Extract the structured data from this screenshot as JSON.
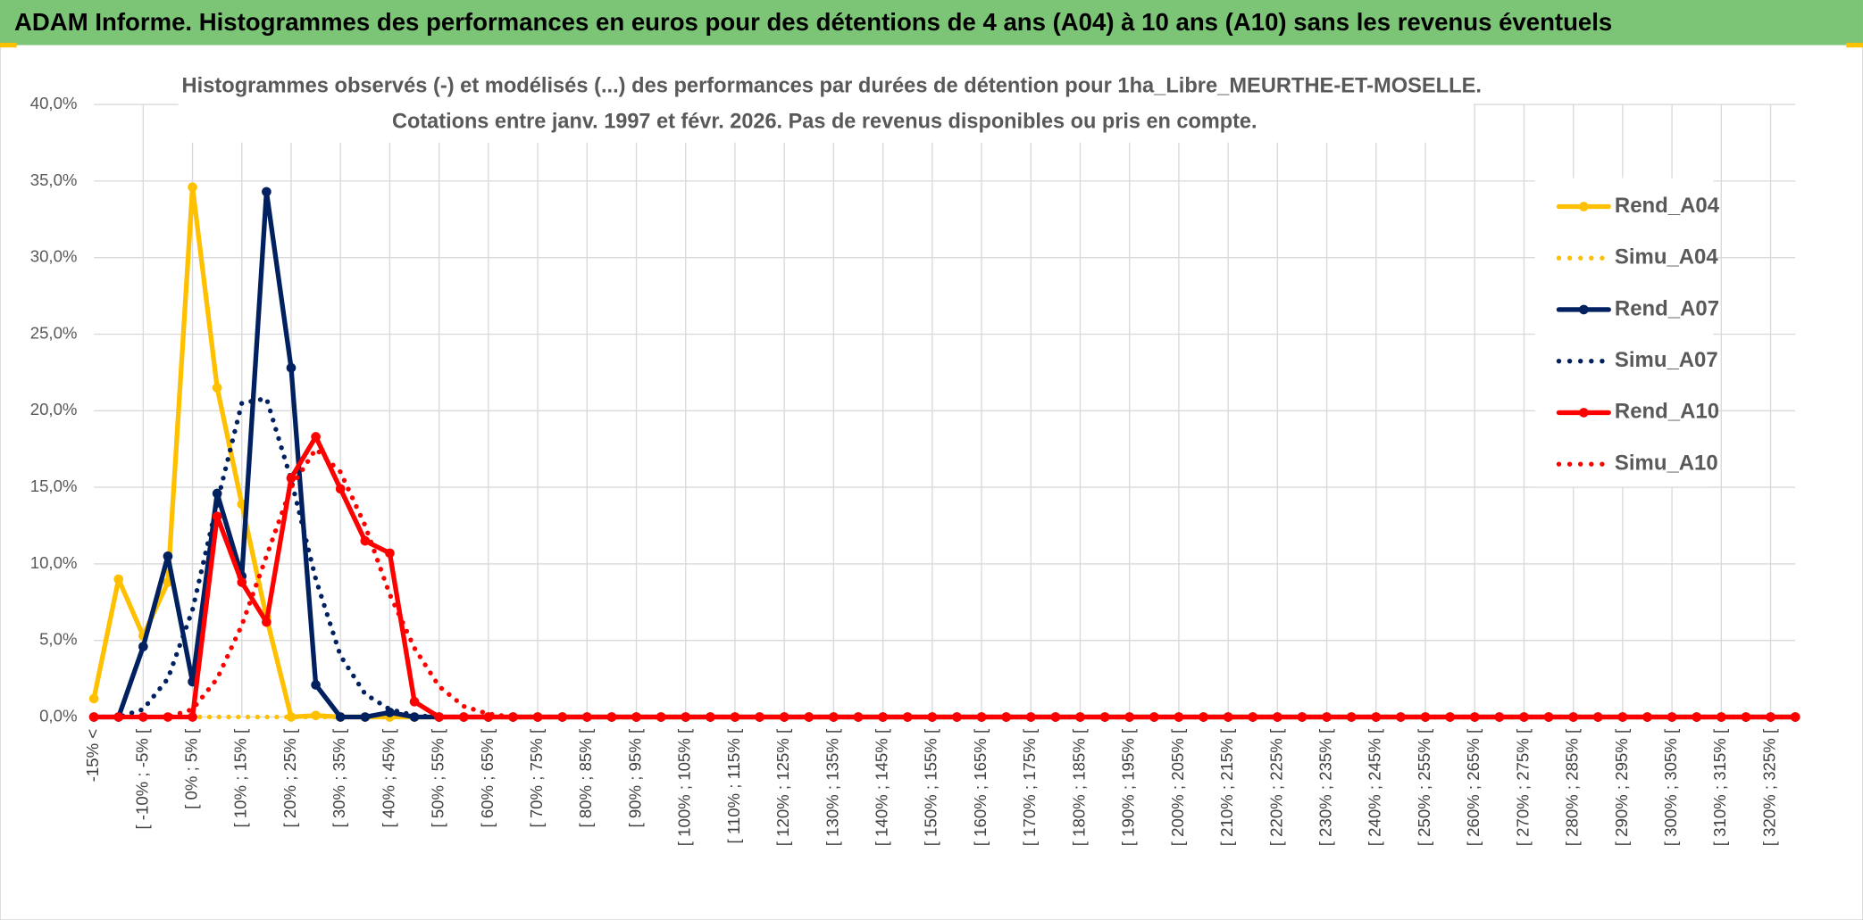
{
  "chart_data": {
    "type": "line",
    "header": "ADAM Informe. Histogrammes des performances en euros pour des détentions de 4 ans (A04) à 10 ans (A10) sans les revenus éventuels",
    "title": "Histogrammes observés (-) et modélisés (...) des performances par durées de détention pour 1ha_Libre_MEURTHE-ET-MOSELLE.",
    "subtitle": "Cotations entre janv. 1997 et févr. 2026. Pas de revenus disponibles ou pris en compte.",
    "categories": [
      "-15% <",
      null,
      "[ -10% ; -5% [",
      null,
      "[ 0% ; 5% [",
      null,
      "[ 10% ; 15% [",
      null,
      "[ 20% ; 25% [",
      null,
      "[ 30% ; 35% [",
      null,
      "[ 40% ; 45% [",
      null,
      "[ 50% ; 55% [",
      null,
      "[ 60% ; 65% [",
      null,
      "[ 70% ; 75% [",
      null,
      "[ 80% ; 85% [",
      null,
      "[ 90% ; 95% [",
      null,
      "[ 100% ; 105% [",
      null,
      "[ 110% ; 115% [",
      null,
      "[ 120% ; 125% [",
      null,
      "[ 130% ; 135% [",
      null,
      "[ 140% ; 145% [",
      null,
      "[ 150% ; 155% [",
      null,
      "[ 160% ; 165% [",
      null,
      "[ 170% ; 175% [",
      null,
      "[ 180% ; 185% [",
      null,
      "[ 190% ; 195% [",
      null,
      "[ 200% ; 205% [",
      null,
      "[ 210% ; 215% [",
      null,
      "[ 220% ; 225% [",
      null,
      "[ 230% ; 235% [",
      null,
      "[ 240% ; 245% [",
      null,
      "[ 250% ; 255% [",
      null,
      "[ 260% ; 265% [",
      null,
      "[ 270% ; 275% [",
      null,
      "[ 280% ; 285% [",
      null,
      "[ 290% ; 295% [",
      null,
      "[ 300% ; 305% [",
      null,
      "[ 310% ; 315% [",
      null,
      "[ 320% ; 325% [",
      null
    ],
    "series": [
      {
        "name": "Rend_A04",
        "color": "#ffc000",
        "line_style": "solid",
        "values": [
          1.2,
          9.0,
          5.3,
          8.8,
          34.6,
          21.5,
          13.9,
          6.5,
          0,
          0.1,
          0,
          0,
          0,
          0,
          0,
          0,
          0,
          0,
          0,
          0,
          0,
          0,
          0,
          0,
          0,
          0,
          0,
          0,
          0,
          0,
          0,
          0,
          0,
          0,
          0,
          0,
          0,
          0,
          0,
          0,
          0,
          0,
          0,
          0,
          0,
          0,
          0,
          0,
          0,
          0,
          0,
          0,
          0,
          0,
          0,
          0,
          0,
          0,
          0,
          0,
          0,
          0,
          0,
          0,
          0,
          0,
          0,
          0,
          0,
          0
        ]
      },
      {
        "name": "Simu_A04",
        "color": "#ffc000",
        "line_style": "dotted",
        "values": [
          0,
          0,
          0,
          0,
          0,
          0,
          0,
          0,
          0,
          0,
          0,
          0,
          0,
          0,
          0,
          0,
          0,
          0,
          0,
          0,
          0,
          0,
          0,
          0,
          0,
          0,
          0,
          0,
          0,
          0,
          0,
          0,
          0,
          0,
          0,
          0,
          0,
          0,
          0,
          0,
          0,
          0,
          0,
          0,
          0,
          0,
          0,
          0,
          0,
          0,
          0,
          0,
          0,
          0,
          0,
          0,
          0,
          0,
          0,
          0,
          0,
          0,
          0,
          0,
          0,
          0,
          0,
          0,
          0,
          0
        ]
      },
      {
        "name": "Rend_A07",
        "color": "#002060",
        "line_style": "solid",
        "values": [
          0,
          0,
          4.6,
          10.5,
          2.3,
          14.6,
          9.2,
          34.3,
          22.8,
          2.1,
          0,
          0,
          0.3,
          0,
          0,
          0,
          0,
          0,
          0,
          0,
          0,
          0,
          0,
          0,
          0,
          0,
          0,
          0,
          0,
          0,
          0,
          0,
          0,
          0,
          0,
          0,
          0,
          0,
          0,
          0,
          0,
          0,
          0,
          0,
          0,
          0,
          0,
          0,
          0,
          0,
          0,
          0,
          0,
          0,
          0,
          0,
          0,
          0,
          0,
          0,
          0,
          0,
          0,
          0,
          0,
          0,
          0,
          0,
          0,
          0
        ]
      },
      {
        "name": "Simu_A07",
        "color": "#002060",
        "line_style": "dotted",
        "values": [
          0,
          0,
          0.5,
          2.5,
          7,
          14,
          20.5,
          20.8,
          15.5,
          9,
          4,
          1.5,
          0.5,
          0.1,
          0,
          0,
          0,
          0,
          0,
          0,
          0,
          0,
          0,
          0,
          0,
          0,
          0,
          0,
          0,
          0,
          0,
          0,
          0,
          0,
          0,
          0,
          0,
          0,
          0,
          0,
          0,
          0,
          0,
          0,
          0,
          0,
          0,
          0,
          0,
          0,
          0,
          0,
          0,
          0,
          0,
          0,
          0,
          0,
          0,
          0,
          0,
          0,
          0,
          0,
          0,
          0,
          0,
          0,
          0,
          0
        ]
      },
      {
        "name": "Rend_A10",
        "color": "#ff0000",
        "line_style": "solid",
        "values": [
          0,
          0,
          0,
          0,
          0,
          13.1,
          8.8,
          6.2,
          15.6,
          18.3,
          14.9,
          11.5,
          10.7,
          1.0,
          0,
          0,
          0,
          0,
          0,
          0,
          0,
          0,
          0,
          0,
          0,
          0,
          0,
          0,
          0,
          0,
          0,
          0,
          0,
          0,
          0,
          0,
          0,
          0,
          0,
          0,
          0,
          0,
          0,
          0,
          0,
          0,
          0,
          0,
          0,
          0,
          0,
          0,
          0,
          0,
          0,
          0,
          0,
          0,
          0,
          0,
          0,
          0,
          0,
          0,
          0,
          0,
          0,
          0,
          0,
          0
        ]
      },
      {
        "name": "Simu_A10",
        "color": "#ff0000",
        "line_style": "dotted",
        "values": [
          0,
          0,
          0,
          0,
          0.5,
          2.5,
          6,
          10.5,
          15,
          17.5,
          16,
          12.5,
          8,
          4.5,
          2,
          0.7,
          0.2,
          0,
          0,
          0,
          0,
          0,
          0,
          0,
          0,
          0,
          0,
          0,
          0,
          0,
          0,
          0,
          0,
          0,
          0,
          0,
          0,
          0,
          0,
          0,
          0,
          0,
          0,
          0,
          0,
          0,
          0,
          0,
          0,
          0,
          0,
          0,
          0,
          0,
          0,
          0,
          0,
          0,
          0,
          0,
          0,
          0,
          0,
          0,
          0,
          0,
          0,
          0,
          0,
          0
        ]
      }
    ],
    "ylim": [
      0,
      40
    ],
    "yticks": [
      {
        "value": 0,
        "label": "0,0%"
      },
      {
        "value": 5,
        "label": "5,0%"
      },
      {
        "value": 10,
        "label": "10,0%"
      },
      {
        "value": 15,
        "label": "15,0%"
      },
      {
        "value": 20,
        "label": "20,0%"
      },
      {
        "value": 25,
        "label": "25,0%"
      },
      {
        "value": 30,
        "label": "30,0%"
      },
      {
        "value": 35,
        "label": "35,0%"
      },
      {
        "value": 40,
        "label": "40,0%"
      }
    ],
    "grid": true,
    "legend": "right"
  }
}
